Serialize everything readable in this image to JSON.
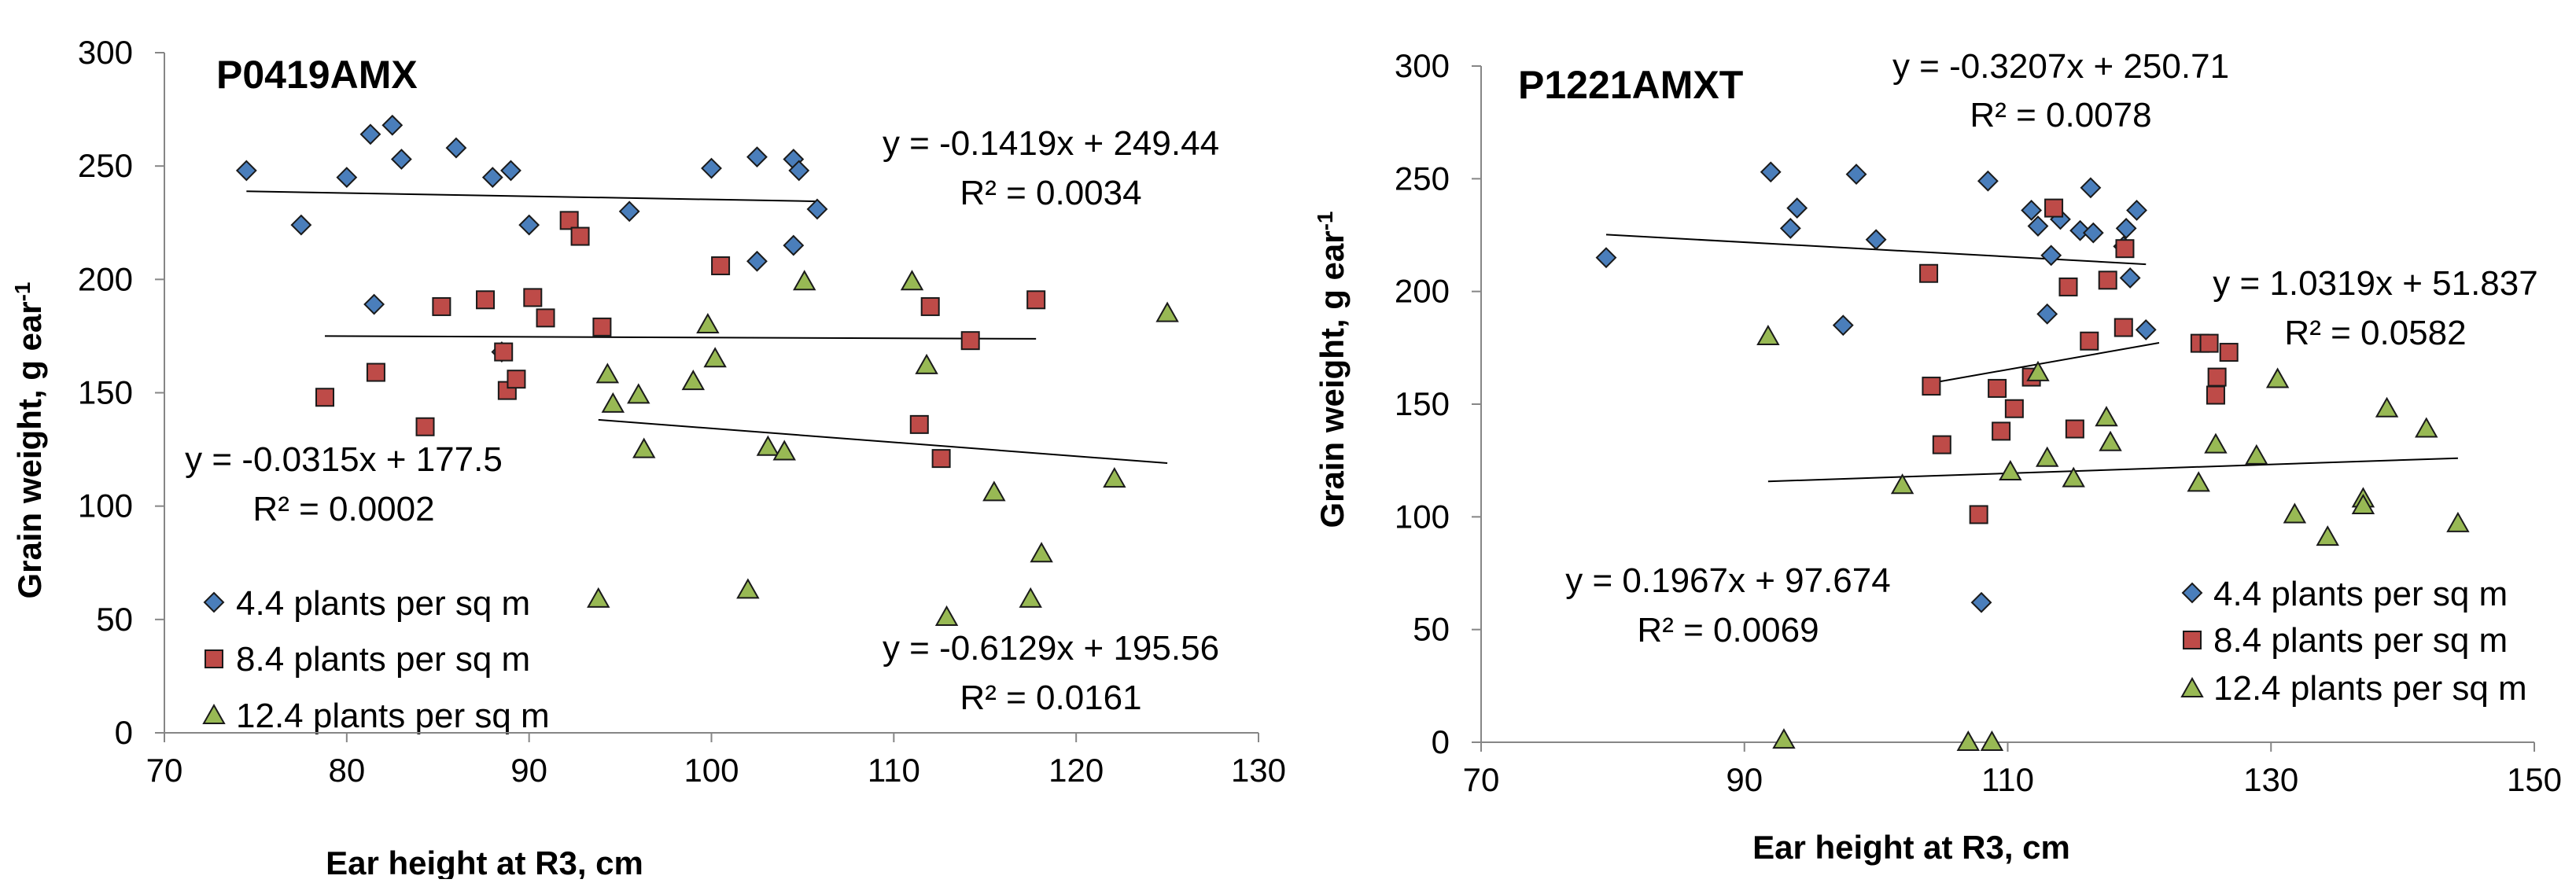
{
  "colors": {
    "series_4_4": "#4a7ebb",
    "series_8_4": "#be4b48",
    "series_12_4": "#98b954",
    "marker_edge": "#1a1a1a",
    "axis": "#868686"
  },
  "chart_data": [
    {
      "type": "scatter",
      "title": "P0419AMX",
      "xlabel": "Ear height at R3, cm",
      "ylabel": "Grain weight, g ear",
      "ylabel_sup": "-1",
      "xlim": [
        70,
        130
      ],
      "ylim": [
        0,
        300
      ],
      "xticks": [
        70,
        80,
        90,
        100,
        110,
        120,
        130
      ],
      "yticks": [
        0,
        50,
        100,
        150,
        200,
        250,
        300
      ],
      "xtick_labels": [
        "70",
        "80",
        "90",
        "100",
        "110",
        "120",
        "130"
      ],
      "ytick_labels": [
        "0",
        "50",
        "100",
        "150",
        "200",
        "250",
        "300"
      ],
      "legend_position": "bottom-left",
      "series": [
        {
          "name": "4.4 plants per sq m",
          "marker": "diamond",
          "color": "#4a7ebb",
          "points": [
            [
              74.5,
              248
            ],
            [
              77.5,
              224
            ],
            [
              80,
              245
            ],
            [
              81.5,
              189
            ],
            [
              81.3,
              264
            ],
            [
              82.5,
              268
            ],
            [
              83,
              253
            ],
            [
              86,
              258
            ],
            [
              88,
              245
            ],
            [
              88.5,
              168
            ],
            [
              89,
              248
            ],
            [
              90,
              224
            ],
            [
              95.5,
              230
            ],
            [
              100,
              249
            ],
            [
              102.5,
              254
            ],
            [
              102.5,
              208
            ],
            [
              104.5,
              253
            ],
            [
              104.5,
              215
            ],
            [
              104.8,
              248
            ],
            [
              105.8,
              231
            ]
          ],
          "trendline": {
            "slope": -0.1419,
            "intercept": 249.44,
            "x_range": [
              74.5,
              105.8
            ]
          },
          "equation": "y = -0.1419x + 249.44",
          "r2": "R² = 0.0034"
        },
        {
          "name": "8.4 plants per sq m",
          "marker": "square",
          "color": "#be4b48",
          "points": [
            [
              78.8,
              148
            ],
            [
              81.6,
              159
            ],
            [
              84.3,
              135
            ],
            [
              85.2,
              188
            ],
            [
              87.6,
              191
            ],
            [
              88.6,
              168
            ],
            [
              88.8,
              151
            ],
            [
              89.3,
              156
            ],
            [
              90.2,
              192
            ],
            [
              90.9,
              183
            ],
            [
              92.2,
              226
            ],
            [
              92.8,
              219
            ],
            [
              94,
              179
            ],
            [
              100.5,
              206
            ],
            [
              111.4,
              136
            ],
            [
              112,
              188
            ],
            [
              112.6,
              121
            ],
            [
              114.2,
              173
            ],
            [
              117.8,
              191
            ]
          ],
          "trendline": {
            "slope": -0.0315,
            "intercept": 177.5,
            "x_range": [
              78.8,
              117.8
            ]
          },
          "equation": "y = -0.0315x + 177.5",
          "r2": "R² = 0.0002"
        },
        {
          "name": "12.4 plants per sq m",
          "marker": "triangle",
          "color": "#98b954",
          "points": [
            [
              93.8,
              59
            ],
            [
              94.3,
              158
            ],
            [
              94.6,
              145
            ],
            [
              96,
              149
            ],
            [
              96.3,
              125
            ],
            [
              99,
              155
            ],
            [
              99.8,
              180
            ],
            [
              100.2,
              165
            ],
            [
              102,
              63
            ],
            [
              103.1,
              126
            ],
            [
              104,
              124
            ],
            [
              105.1,
              199
            ],
            [
              111,
              199
            ],
            [
              111.8,
              162
            ],
            [
              112.9,
              51
            ],
            [
              115.5,
              106
            ],
            [
              117.5,
              59
            ],
            [
              118.1,
              79
            ],
            [
              122.1,
              112
            ],
            [
              125,
              185
            ]
          ],
          "trendline": {
            "slope": -0.6129,
            "intercept": 195.56,
            "x_range": [
              93.8,
              125
            ]
          },
          "equation": "y = -0.6129x + 195.56",
          "r2": "R² = 0.0161"
        }
      ]
    },
    {
      "type": "scatter",
      "title": "P1221AMXT",
      "xlabel": "Ear height at R3, cm",
      "ylabel": "Grain weight, g ear",
      "ylabel_sup": "-1",
      "xlim": [
        70,
        150
      ],
      "ylim": [
        0,
        300
      ],
      "xticks": [
        70,
        90,
        110,
        130,
        150
      ],
      "yticks": [
        0,
        50,
        100,
        150,
        200,
        250,
        300
      ],
      "xtick_labels": [
        "70",
        "90",
        "110",
        "130",
        "150"
      ],
      "ytick_labels": [
        "0",
        "50",
        "100",
        "150",
        "200",
        "250",
        "300"
      ],
      "legend_position": "bottom-right",
      "series": [
        {
          "name": "4.4 plants per sq m",
          "marker": "diamond",
          "color": "#4a7ebb",
          "points": [
            [
              79.5,
              215
            ],
            [
              92,
              253
            ],
            [
              93.5,
              228
            ],
            [
              94,
              237
            ],
            [
              97.5,
              185
            ],
            [
              98.5,
              252
            ],
            [
              100,
              223
            ],
            [
              108,
              62
            ],
            [
              108.5,
              249
            ],
            [
              111.8,
              236
            ],
            [
              112.3,
              229
            ],
            [
              113,
              190
            ],
            [
              113.3,
              216
            ],
            [
              114,
              232
            ],
            [
              115.5,
              227
            ],
            [
              116.3,
              246
            ],
            [
              116.5,
              226
            ],
            [
              118.8,
              220
            ],
            [
              119,
              228
            ],
            [
              119.3,
              206
            ],
            [
              119.8,
              236
            ],
            [
              120.5,
              183
            ]
          ],
          "trendline": {
            "slope": -0.3207,
            "intercept": 250.71,
            "x_range": [
              79.5,
              120.5
            ]
          },
          "equation": "y = -0.3207x + 250.71",
          "r2": "R² = 0.0078"
        },
        {
          "name": "8.4 plants per sq m",
          "marker": "square",
          "color": "#be4b48",
          "points": [
            [
              104,
              208
            ],
            [
              104.2,
              158
            ],
            [
              105,
              132
            ],
            [
              107.8,
              101
            ],
            [
              109.2,
              157
            ],
            [
              109.5,
              138
            ],
            [
              110.5,
              148
            ],
            [
              111.8,
              162
            ],
            [
              113.5,
              237
            ],
            [
              114.6,
              202
            ],
            [
              115.1,
              139
            ],
            [
              116.2,
              178
            ],
            [
              117.6,
              205
            ],
            [
              118.8,
              184
            ],
            [
              118.9,
              219
            ],
            [
              124.6,
              177
            ],
            [
              125.3,
              177
            ],
            [
              125.8,
              154
            ],
            [
              125.9,
              162
            ],
            [
              126.8,
              173
            ]
          ],
          "trendline": {
            "slope": 1.0319,
            "intercept": 51.837,
            "x_range": [
              104.2,
              121.5
            ]
          },
          "equation": "y = 1.0319x + 51.837",
          "r2": "R² = 0.0582"
        },
        {
          "name": "12.4 plants per sq m",
          "marker": "triangle",
          "color": "#98b954",
          "points": [
            [
              91.8,
              180
            ],
            [
              93,
              1
            ],
            [
              102,
              114
            ],
            [
              107,
              0
            ],
            [
              108.8,
              0
            ],
            [
              110.2,
              120
            ],
            [
              112.3,
              164
            ],
            [
              113,
              126
            ],
            [
              115,
              117
            ],
            [
              117.5,
              144
            ],
            [
              117.8,
              133
            ],
            [
              124.5,
              115
            ],
            [
              125.8,
              132
            ],
            [
              128.9,
              127
            ],
            [
              130.5,
              161
            ],
            [
              131.8,
              101
            ],
            [
              134.3,
              91
            ],
            [
              137,
              108
            ],
            [
              137,
              105
            ],
            [
              138.8,
              148
            ],
            [
              141.8,
              139
            ],
            [
              144.2,
              97
            ]
          ],
          "trendline": {
            "slope": 0.1967,
            "intercept": 97.674,
            "x_range": [
              91.8,
              144.2
            ]
          },
          "equation": "y = 0.1967x + 97.674",
          "r2": "R² = 0.0069"
        }
      ]
    }
  ]
}
